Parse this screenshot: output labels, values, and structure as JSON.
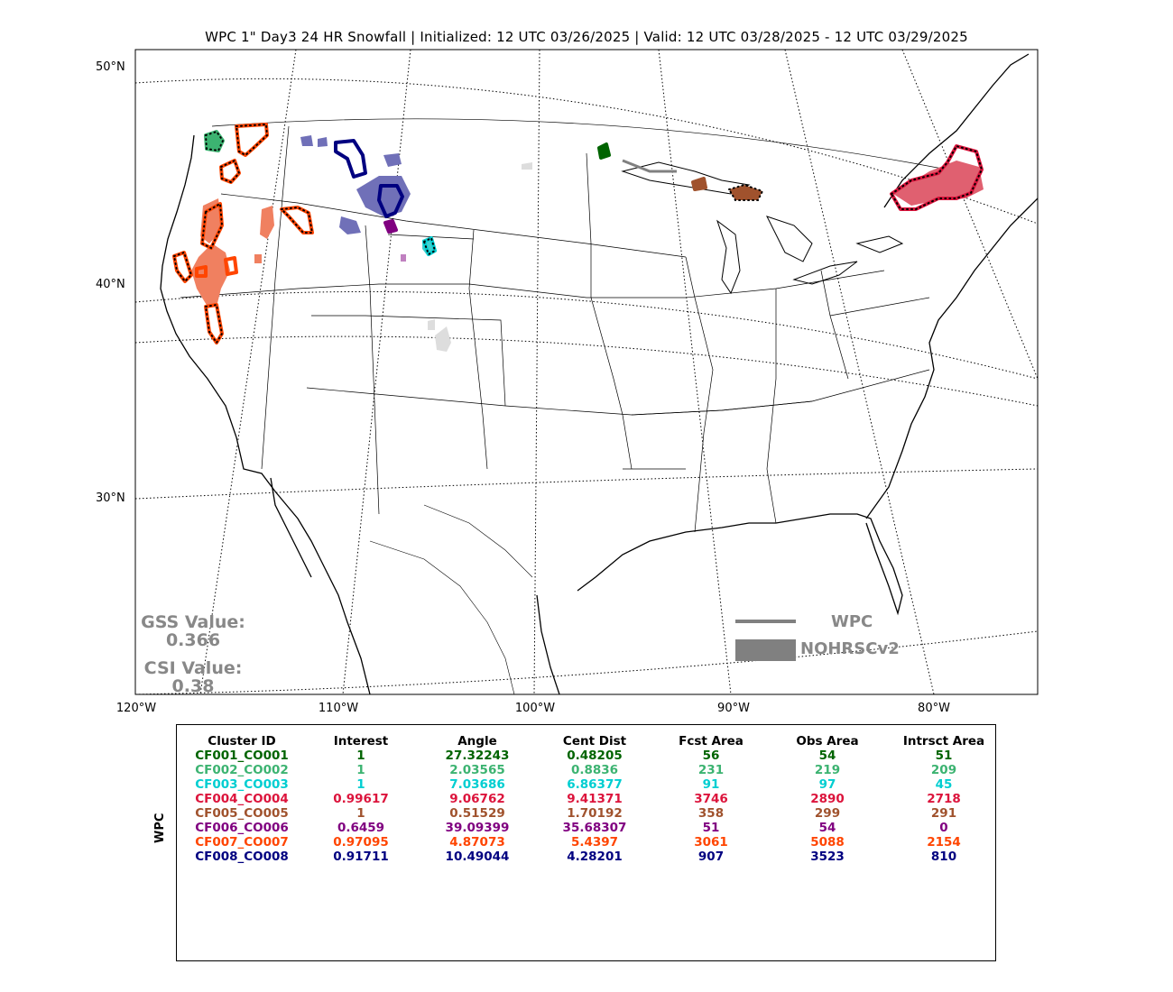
{
  "title": "WPC 1\" Day3 24 HR Snowfall | Initialized: 12 UTC 03/26/2025 | Valid: 12 UTC 03/28/2025 - 12 UTC 03/29/2025",
  "lat_labels": [
    "50°N",
    "40°N",
    "30°N"
  ],
  "lon_labels": [
    "120°W",
    "110°W",
    "100°W",
    "90°W",
    "80°W"
  ],
  "gss": {
    "label": "GSS Value:",
    "value": "0.366"
  },
  "csi": {
    "label": "CSI Value:",
    "value": "0.38"
  },
  "legend": {
    "wpc": "WPC",
    "nohrsc": "NOHRSCv2",
    "color": "#808080"
  },
  "table": {
    "ylabel": "WPC",
    "headers": [
      "Cluster ID",
      "Interest",
      "Angle",
      "Cent Dist",
      "Fcst Area",
      "Obs Area",
      "Intrsct Area"
    ],
    "rows": [
      {
        "color": "#006400",
        "cells": [
          "CF001_CO001",
          "1",
          "27.32243",
          "0.48205",
          "56",
          "54",
          "51"
        ]
      },
      {
        "color": "#3cb371",
        "cells": [
          "CF002_CO002",
          "1",
          "2.03565",
          "0.8836",
          "231",
          "219",
          "209"
        ]
      },
      {
        "color": "#00ced1",
        "cells": [
          "CF003_CO003",
          "1",
          "7.03686",
          "6.86377",
          "91",
          "97",
          "45"
        ]
      },
      {
        "color": "#dc143c",
        "cells": [
          "CF004_CO004",
          "0.99617",
          "9.06762",
          "9.41371",
          "3746",
          "2890",
          "2718"
        ]
      },
      {
        "color": "#a0522d",
        "cells": [
          "CF005_CO005",
          "1",
          "0.51529",
          "1.70192",
          "358",
          "299",
          "291"
        ]
      },
      {
        "color": "#800080",
        "cells": [
          "CF006_CO006",
          "0.6459",
          "39.09399",
          "35.68307",
          "51",
          "54",
          "0"
        ]
      },
      {
        "color": "#ff4500",
        "cells": [
          "CF007_CO007",
          "0.97095",
          "4.87073",
          "5.4397",
          "3061",
          "5088",
          "2154"
        ]
      },
      {
        "color": "#000080",
        "cells": [
          "CF008_CO008",
          "0.91711",
          "10.49044",
          "4.28201",
          "907",
          "3523",
          "810"
        ]
      }
    ]
  }
}
